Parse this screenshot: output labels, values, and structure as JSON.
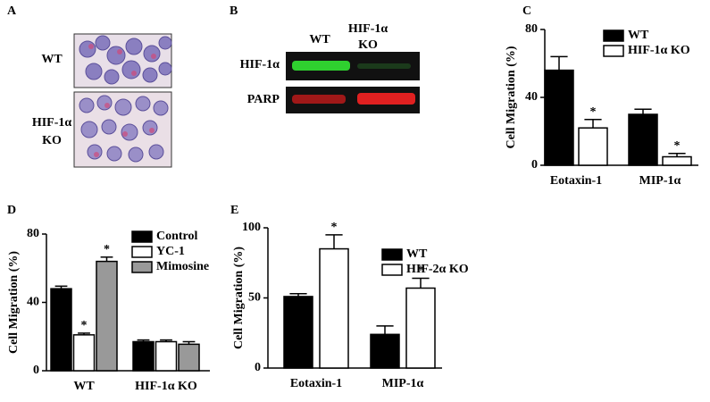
{
  "panel_a": {
    "label": "A",
    "rows": [
      [
        "WT"
      ],
      [
        "HIF-1α",
        "KO"
      ]
    ]
  },
  "panel_b": {
    "label": "B",
    "columns": [
      [
        "WT"
      ],
      [
        "HIF-1α",
        "KO"
      ]
    ],
    "rows": [
      "HIF-1α",
      "PARP"
    ]
  },
  "chart_data": [
    {
      "type": "bar",
      "label": "C",
      "ylabel": "Cell Migration (%)",
      "categories": [
        "Eotaxin-1",
        "MIP-1α"
      ],
      "ylim": [
        0,
        80
      ],
      "yticks": [
        0,
        40,
        80
      ],
      "series": [
        {
          "name": "WT",
          "color": "#000000",
          "values": [
            56,
            30
          ],
          "errors": [
            8,
            3
          ]
        },
        {
          "name": "HIF-1α KO",
          "color": "#ffffff",
          "values": [
            22,
            5
          ],
          "errors": [
            5,
            2
          ],
          "significance": [
            "*",
            "*"
          ]
        }
      ]
    },
    {
      "type": "bar",
      "label": "D",
      "ylabel": "Cell Migration (%)",
      "categories": [
        "WT",
        "HIF-1α KO"
      ],
      "ylim": [
        0,
        80
      ],
      "yticks": [
        0,
        40,
        80
      ],
      "series": [
        {
          "name": "Control",
          "color": "#000000",
          "values": [
            48,
            17
          ],
          "errors": [
            1.5,
            1
          ]
        },
        {
          "name": "YC-1",
          "color": "#ffffff",
          "values": [
            21,
            17
          ],
          "errors": [
            1,
            1
          ],
          "significance": [
            "*",
            null
          ]
        },
        {
          "name": "Mimosine",
          "color": "#999999",
          "values": [
            64,
            15.5
          ],
          "errors": [
            2.5,
            1.5
          ],
          "significance": [
            "*",
            null
          ]
        }
      ]
    },
    {
      "type": "bar",
      "label": "E",
      "ylabel": "Cell Migration (%)",
      "categories": [
        "Eotaxin-1",
        "MIP-1α"
      ],
      "ylim": [
        0,
        100
      ],
      "yticks": [
        0,
        50,
        100
      ],
      "series": [
        {
          "name": "WT",
          "color": "#000000",
          "values": [
            51,
            24
          ],
          "errors": [
            2,
            6
          ]
        },
        {
          "name": "HIF-2α KO",
          "color": "#ffffff",
          "values": [
            85,
            57
          ],
          "errors": [
            10,
            7
          ],
          "significance": [
            "*",
            "*"
          ]
        }
      ]
    }
  ]
}
